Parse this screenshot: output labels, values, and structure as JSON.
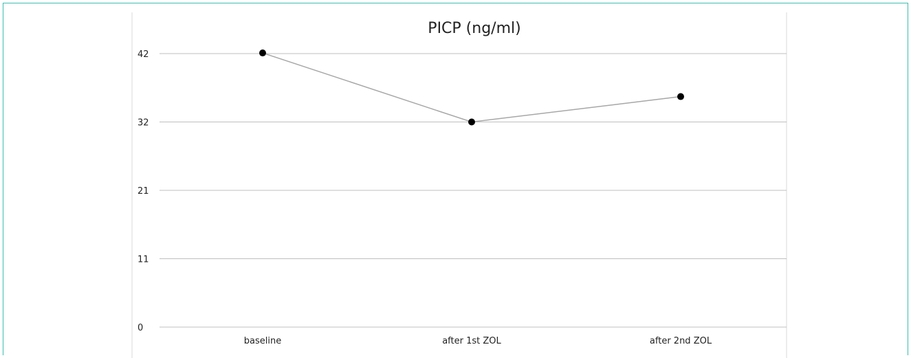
{
  "colors": {
    "frame_border": "#3dbcae",
    "gridline": "#bfbfbf",
    "series_line": "#a6a6a6",
    "marker": "#000000"
  },
  "chart_data": {
    "type": "line",
    "title": "PICP (ng/ml)",
    "xlabel": "",
    "ylabel": "",
    "categories": [
      "baseline",
      "after 1st ZOL",
      "after 2nd ZOL"
    ],
    "series": [
      {
        "values": [
          42.1,
          31.5,
          35.4
        ]
      }
    ],
    "yticks": [
      {
        "value": 0,
        "label": "0"
      },
      {
        "value": 10.5,
        "label": "11"
      },
      {
        "value": 21,
        "label": "21"
      },
      {
        "value": 31.5,
        "label": "32"
      },
      {
        "value": 42,
        "label": "42"
      }
    ],
    "ylim": [
      0,
      42
    ],
    "grid": true,
    "legend": "none"
  }
}
